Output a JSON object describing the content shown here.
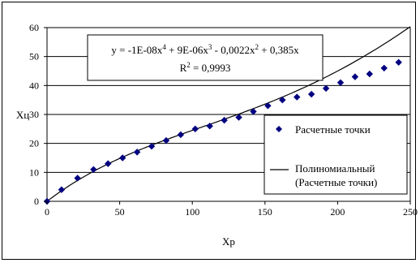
{
  "chart_data": {
    "type": "scatter",
    "title": "",
    "xlabel": "Xp",
    "ylabel": "Xц",
    "xlim": [
      0,
      250
    ],
    "ylim": [
      0,
      60
    ],
    "x_ticks": [
      "0",
      "50",
      "100",
      "150",
      "200",
      "250"
    ],
    "y_ticks": [
      "0",
      "10",
      "20",
      "30",
      "40",
      "50",
      "60"
    ],
    "grid": "horizontal",
    "legend_position": "right",
    "equation": {
      "line1_parts": [
        "y = -1E-08x",
        "4",
        " + 9E-06x",
        "3",
        " - 0,0022x",
        "2",
        " + 0,385x"
      ],
      "line2_parts": [
        "R",
        "2",
        " = 0,9993"
      ]
    },
    "series": [
      {
        "name": "Расчетные точки",
        "kind": "markers",
        "marker": "diamond",
        "color": "#000080",
        "x": [
          0,
          10,
          21,
          32,
          42,
          52,
          62,
          72,
          82,
          92,
          102,
          112,
          122,
          132,
          142,
          152,
          162,
          172,
          182,
          192,
          202,
          212,
          222,
          232,
          242
        ],
        "y": [
          0,
          4,
          8,
          11,
          13,
          15,
          17,
          19,
          21,
          23,
          25,
          26,
          28,
          29,
          31,
          33,
          35,
          36,
          37,
          39,
          41,
          43,
          44,
          46,
          48
        ]
      },
      {
        "name": "Полиномиальный (Расчетные точки)",
        "name_lines": [
          "Полиномиальный",
          "(Расчетные точки)"
        ],
        "kind": "trendline",
        "color": "#000000",
        "coefficients": {
          "a4": -1e-08,
          "a3": 9e-06,
          "a2": -0.0022,
          "a1": 0.385
        }
      }
    ]
  }
}
